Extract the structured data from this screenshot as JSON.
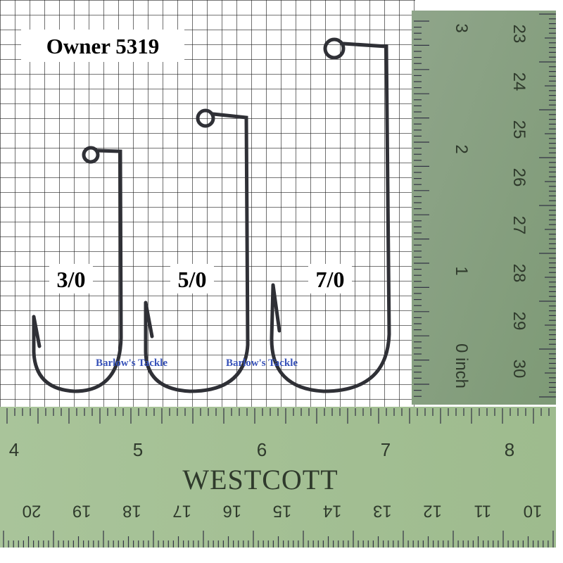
{
  "label": "Owner 5319",
  "hooks": [
    {
      "size": "3/0"
    },
    {
      "size": "5/0"
    },
    {
      "size": "7/0"
    }
  ],
  "watermarks": [
    "Barlow's Tackle",
    "Barlow's Tackle"
  ],
  "right_ruler": {
    "inch_labels": [
      "3",
      "2",
      "1",
      "0 inch"
    ],
    "cm_labels": [
      "23",
      "24",
      "25",
      "26",
      "27",
      "28",
      "29",
      "30"
    ]
  },
  "bottom_ruler": {
    "inch_labels": [
      "4",
      "5",
      "6",
      "7",
      "8"
    ],
    "brand": "WESTCOTT",
    "cm_labels": [
      "20",
      "19",
      "18",
      "17",
      "16",
      "15",
      "14",
      "13",
      "12",
      "11",
      "10"
    ]
  }
}
